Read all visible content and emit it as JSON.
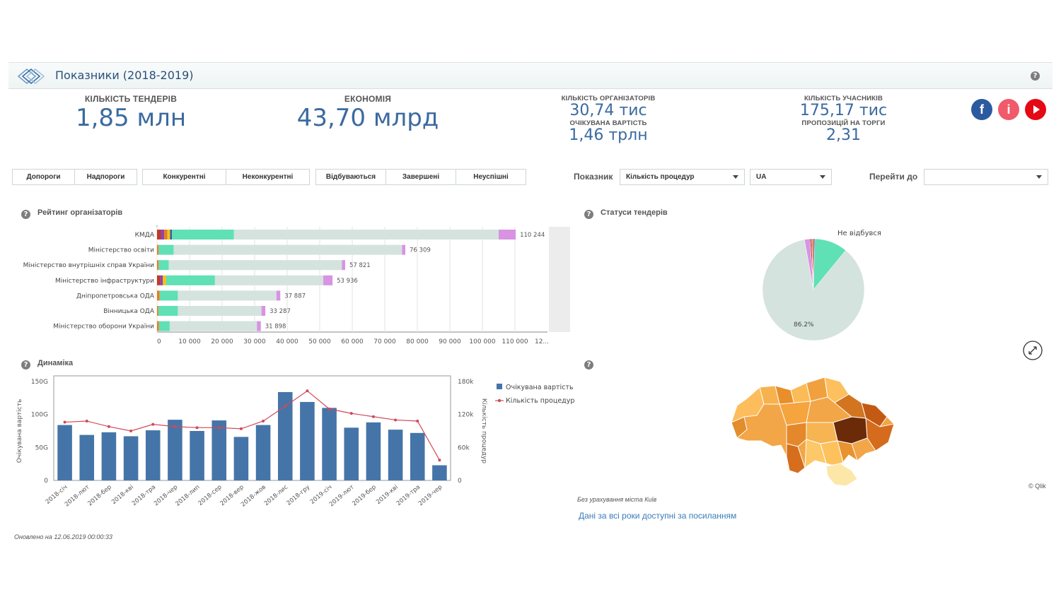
{
  "header": {
    "title": "Показники (2018-2019)",
    "help": "?"
  },
  "kpis": {
    "tenders": {
      "label": "КІЛЬКІСТЬ ТЕНДЕРІВ",
      "value": "1,85 млн"
    },
    "economy": {
      "label": "ЕКОНОМІЯ",
      "value": "43,70 млрд"
    },
    "organizers": {
      "label": "КІЛЬКІСТЬ ОРГАНІЗАТОРІВ",
      "value": "30,74 тис"
    },
    "expected": {
      "label": "ОЧІКУВАНА ВАРТІСТЬ",
      "value": "1,46 трлн"
    },
    "participants": {
      "label": "КІЛЬКІСТЬ УЧАСНИКІВ",
      "value": "175,17 тис"
    },
    "proposals": {
      "label": "ПРОПОЗИЦІЙ НА ТОРГИ",
      "value": "2,31"
    }
  },
  "social": {
    "facebook": "f",
    "info": "i",
    "youtube_color": "#e50914",
    "facebook_color": "#2c5aa0",
    "info_color": "#f05a6a"
  },
  "filters": {
    "group1": [
      "Допороги",
      "Надпороги"
    ],
    "group2": [
      "Конкурентні",
      "Неконкурентні"
    ],
    "group3": [
      "Відбуваються",
      "Завершені",
      "Неуспішні"
    ],
    "indicator_label": "Показник",
    "indicator_value": "Кількість процедур",
    "currency_value": "UA",
    "goto_label": "Перейти до",
    "goto_value": ""
  },
  "rating": {
    "title": "Рейтинг організаторів",
    "chart_data": {
      "type": "bar",
      "orientation": "horizontal",
      "categories": [
        "КМДА",
        "Міністерство освіти",
        "Міністерство внутрішніх справ України",
        "Міністерство інфраструктури",
        "Дніпропетровська ОДА",
        "Вінницька ОДА",
        "Міністерство оборони України"
      ],
      "totals": [
        110244,
        76309,
        57821,
        53936,
        37887,
        33287,
        31898
      ],
      "total_labels": [
        "110 244",
        "76 309",
        "57 821",
        "53 936",
        "37 887",
        "33 287",
        "31 898"
      ],
      "segments": [
        [
          {
            "v": 1200,
            "c": "#c0392b"
          },
          {
            "v": 1000,
            "c": "#8e44ad"
          },
          {
            "v": 1000,
            "c": "#e67e22"
          },
          {
            "v": 800,
            "c": "#f1c40f"
          },
          {
            "v": 600,
            "c": "#3b5bab"
          },
          {
            "v": 19000,
            "c": "#5fe0b5"
          },
          {
            "v": 81400,
            "c": "#d4e3dd"
          },
          {
            "v": 5244,
            "c": "#d893e3"
          }
        ],
        [
          {
            "v": 500,
            "c": "#e67e22"
          },
          {
            "v": 4600,
            "c": "#5fe0b5"
          },
          {
            "v": 70200,
            "c": "#d4e3dd"
          },
          {
            "v": 1009,
            "c": "#d893e3"
          }
        ],
        [
          {
            "v": 500,
            "c": "#e67e22"
          },
          {
            "v": 3100,
            "c": "#5fe0b5"
          },
          {
            "v": 53200,
            "c": "#d4e3dd"
          },
          {
            "v": 1021,
            "c": "#d893e3"
          }
        ],
        [
          {
            "v": 1000,
            "c": "#c0392b"
          },
          {
            "v": 800,
            "c": "#8e44ad"
          },
          {
            "v": 1000,
            "c": "#f1c40f"
          },
          {
            "v": 15000,
            "c": "#5fe0b5"
          },
          {
            "v": 33300,
            "c": "#d4e3dd"
          },
          {
            "v": 2836,
            "c": "#d893e3"
          }
        ],
        [
          {
            "v": 800,
            "c": "#e67e22"
          },
          {
            "v": 5600,
            "c": "#5fe0b5"
          },
          {
            "v": 30300,
            "c": "#d4e3dd"
          },
          {
            "v": 1187,
            "c": "#d893e3"
          }
        ],
        [
          {
            "v": 400,
            "c": "#e67e22"
          },
          {
            "v": 6000,
            "c": "#5fe0b5"
          },
          {
            "v": 25700,
            "c": "#d4e3dd"
          },
          {
            "v": 1187,
            "c": "#d893e3"
          }
        ],
        [
          {
            "v": 600,
            "c": "#e67e22"
          },
          {
            "v": 3300,
            "c": "#5fe0b5"
          },
          {
            "v": 26800,
            "c": "#d4e3dd"
          },
          {
            "v": 1198,
            "c": "#d893e3"
          }
        ]
      ],
      "xticks": [
        0,
        10000,
        20000,
        30000,
        40000,
        50000,
        60000,
        70000,
        80000,
        90000,
        100000,
        110000
      ],
      "xtick_labels": [
        "0",
        "10 000",
        "20 000",
        "30 000",
        "40 000",
        "50 000",
        "60 000",
        "70 000",
        "80 000",
        "90 000",
        "100 000",
        "110 000",
        "12..."
      ],
      "xlim": [
        0,
        120000
      ]
    }
  },
  "statuses": {
    "title": "Статуси тендерів",
    "chart_data": {
      "type": "pie",
      "slices": [
        {
          "value": 86.2,
          "color": "#d4e3dd"
        },
        {
          "value": 1.8,
          "color": "#d893e3"
        },
        {
          "value": 0.5,
          "color": "#c0392b"
        },
        {
          "value": 0.5,
          "color": "#e67e22"
        },
        {
          "value": 0.5,
          "color": "#8e44ad"
        },
        {
          "value": 10.5,
          "color": "#5fe0b5"
        }
      ],
      "labels": {
        "main": "86.2%",
        "annotation": "Не відбувся"
      }
    }
  },
  "dynamics": {
    "title": "Динаміка",
    "chart_data": {
      "type": "bar",
      "categories": [
        "2018-січ",
        "2018-лют",
        "2018-бер",
        "2018-кві",
        "2018-тра",
        "2018-чер",
        "2018-лип",
        "2018-сер",
        "2018-вер",
        "2018-жов",
        "2018-лис",
        "2018-гру",
        "2019-січ",
        "2019-лют",
        "2019-бер",
        "2019-кві",
        "2019-тра",
        "2019-чер"
      ],
      "series": [
        {
          "name": "Очікувана вартість",
          "type": "bar",
          "color": "#4575a8",
          "values": [
            84,
            69,
            73,
            67,
            76,
            92,
            75,
            91,
            66,
            84,
            134,
            119,
            110,
            80,
            88,
            77,
            72,
            23
          ]
        },
        {
          "name": "Кількість процедур",
          "type": "line",
          "color": "#d0495a",
          "values": [
            106,
            108,
            98,
            90,
            102,
            98,
            96,
            96,
            94,
            108,
            135,
            163,
            130,
            122,
            116,
            110,
            108,
            37
          ]
        }
      ],
      "ylabel": "Очікувана вартість",
      "y2label": "Кількість процедур",
      "ylim": [
        0,
        150
      ],
      "y2lim": [
        0,
        180
      ],
      "yticks": [
        0,
        50,
        100,
        150
      ],
      "ytick_labels": [
        "0",
        "50G",
        "100G",
        "150G"
      ],
      "y2ticks": [
        0,
        60,
        120,
        180
      ],
      "y2tick_labels": [
        "0",
        "60k",
        "120k",
        "180k"
      ],
      "legend": "right"
    }
  },
  "map": {
    "note": "Без урахування міста Київ",
    "credit": "© Qlik",
    "link": "Дані за всі роки доступні за посиланням"
  },
  "footer": {
    "updated": "Оновлено на 12.06.2019 00:00:33"
  }
}
